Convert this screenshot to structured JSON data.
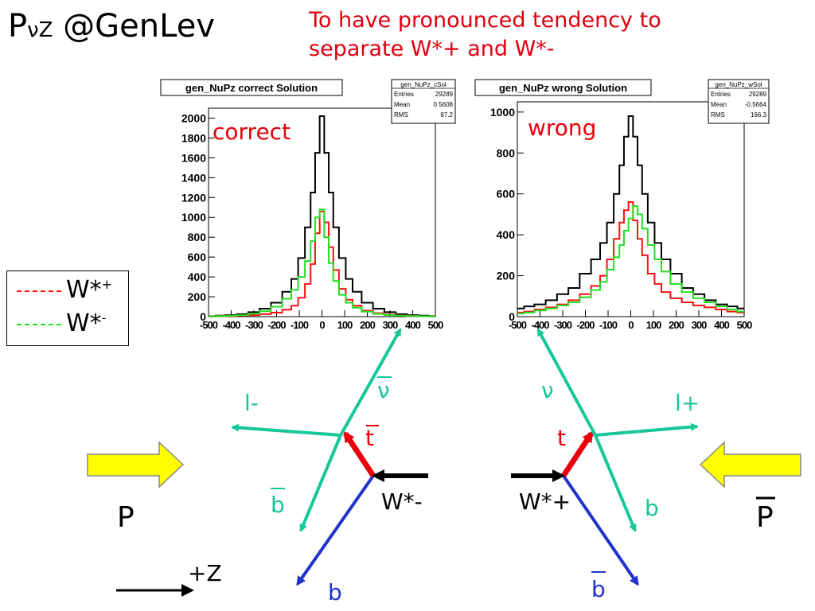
{
  "slide": {
    "title_main": "P",
    "title_sub": "νZ",
    "title_rest": " @GenLev",
    "note_line1": "To have pronounced tendency to",
    "note_line2": "separate W*+ and W*-"
  },
  "legend": {
    "items": [
      {
        "label": "W*",
        "sup": "+",
        "color": "#ff1010"
      },
      {
        "label": "W*",
        "sup": "-",
        "color": "#22e022"
      }
    ]
  },
  "chart_data": [
    {
      "type": "line",
      "title": "gen_NuPz correct Solution",
      "annotation": "correct",
      "annotation_color": "#e8000a",
      "stats": {
        "name": "gen_NuPz_cSol",
        "Entries": "29289",
        "Mean": "0.5608",
        "RMS": "87.2"
      },
      "xlim": [
        -500,
        500
      ],
      "ylim": [
        0,
        2100
      ],
      "xticks": [
        -500,
        -400,
        -300,
        -200,
        -100,
        0,
        100,
        200,
        300,
        400,
        500
      ],
      "yticks": [
        0,
        200,
        400,
        600,
        800,
        1000,
        1200,
        1400,
        1600,
        1800,
        2000
      ],
      "x": [
        -490,
        -450,
        -400,
        -350,
        -300,
        -250,
        -200,
        -150,
        -120,
        -90,
        -60,
        -40,
        -20,
        0,
        20,
        40,
        60,
        90,
        120,
        150,
        200,
        250,
        300,
        350,
        400,
        450,
        490
      ],
      "series": [
        {
          "name": "",
          "color": "#000000",
          "values": [
            5,
            10,
            15,
            25,
            45,
            80,
            140,
            250,
            380,
            590,
            900,
            1250,
            1650,
            2020,
            1650,
            1250,
            900,
            590,
            380,
            250,
            140,
            80,
            45,
            25,
            15,
            10,
            5
          ]
        },
        {
          "name": "W*+",
          "color": "#ff1010",
          "values": [
            2,
            4,
            6,
            10,
            15,
            25,
            40,
            70,
            110,
            190,
            330,
            530,
            840,
            1060,
            950,
            700,
            470,
            280,
            170,
            110,
            60,
            35,
            20,
            12,
            7,
            4,
            2
          ]
        },
        {
          "name": "W*-",
          "color": "#22e022",
          "values": [
            3,
            6,
            9,
            15,
            30,
            55,
            100,
            180,
            270,
            400,
            560,
            760,
            1000,
            1080,
            800,
            540,
            360,
            220,
            140,
            90,
            50,
            28,
            16,
            10,
            6,
            4,
            2
          ]
        }
      ]
    },
    {
      "type": "line",
      "title": "gen_NuPz wrong Solution",
      "annotation": "wrong",
      "annotation_color": "#e8000a",
      "stats": {
        "name": "gen_NuPz_wSol",
        "Entries": "29289",
        "Mean": "-0.5664",
        "RMS": "166.3"
      },
      "xlim": [
        -500,
        500
      ],
      "ylim": [
        0,
        1050
      ],
      "xticks": [
        -500,
        -400,
        -300,
        -200,
        -100,
        0,
        100,
        200,
        300,
        400,
        500
      ],
      "yticks": [
        0,
        200,
        400,
        600,
        800,
        1000
      ],
      "x": [
        -490,
        -450,
        -400,
        -350,
        -300,
        -250,
        -200,
        -150,
        -120,
        -90,
        -60,
        -40,
        -20,
        0,
        20,
        40,
        60,
        90,
        120,
        150,
        200,
        250,
        300,
        350,
        400,
        450,
        490
      ],
      "series": [
        {
          "name": "",
          "color": "#000000",
          "values": [
            40,
            50,
            60,
            80,
            110,
            140,
            210,
            280,
            360,
            460,
            600,
            740,
            880,
            980,
            880,
            740,
            600,
            460,
            360,
            280,
            210,
            140,
            110,
            80,
            60,
            50,
            40
          ]
        },
        {
          "name": "W*+",
          "color": "#ff1010",
          "values": [
            20,
            25,
            35,
            45,
            60,
            80,
            110,
            150,
            200,
            280,
            380,
            460,
            520,
            560,
            470,
            380,
            300,
            210,
            160,
            120,
            90,
            70,
            55,
            45,
            35,
            25,
            20
          ]
        },
        {
          "name": "W*-",
          "color": "#22e022",
          "values": [
            15,
            20,
            30,
            40,
            55,
            70,
            95,
            130,
            170,
            230,
            290,
            350,
            420,
            480,
            540,
            500,
            430,
            350,
            280,
            220,
            160,
            120,
            90,
            70,
            50,
            35,
            25
          ]
        }
      ]
    }
  ],
  "diagram": {
    "left": {
      "proton": "P",
      "top": "t",
      "antib": "b",
      "b": "b",
      "lepton": "l-",
      "neutrino": "ν",
      "w": "W*-"
    },
    "right": {
      "proton": "P",
      "top": "t",
      "antib": "b",
      "b": "b",
      "lepton": "l+",
      "neutrino": "ν",
      "w": "W*+"
    },
    "zaxis": "+Z",
    "colors": {
      "teal": "#17c79a",
      "blue": "#2233cc",
      "red": "#e8000a",
      "arrow_yellow": "#ffff00"
    }
  }
}
